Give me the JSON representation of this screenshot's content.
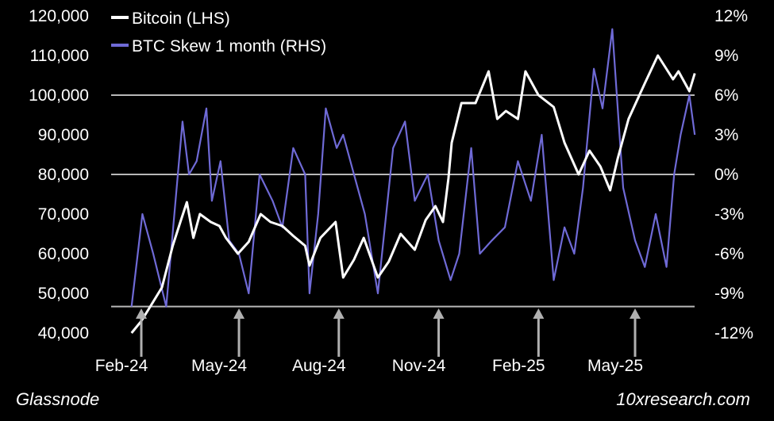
{
  "chart_data": {
    "type": "line",
    "x_tick_labels": [
      "Feb-24",
      "May-24",
      "Aug-24",
      "Nov-24",
      "Feb-25",
      "May-25"
    ],
    "left_axis": {
      "ticks": [
        40000,
        50000,
        60000,
        70000,
        80000,
        90000,
        100000,
        110000,
        120000
      ],
      "tick_labels": [
        "40,000",
        "50,000",
        "60,000",
        "70,000",
        "80,000",
        "90,000",
        "100,000",
        "110,000",
        "120,000"
      ],
      "ylim": [
        40000,
        120000
      ]
    },
    "right_axis": {
      "ticks": [
        -12,
        -9,
        -6,
        -3,
        0,
        3,
        6,
        9,
        12
      ],
      "tick_labels": [
        "-12%",
        "-9%",
        "-6%",
        "-3%",
        "0%",
        "3%",
        "6%",
        "9%",
        "12%"
      ],
      "ylim": [
        -12,
        12
      ]
    },
    "reference_lines": {
      "left_axis_values": [
        100000,
        80000
      ],
      "right_axis_values": [
        -10
      ]
    },
    "arrows": [
      "Feb-24",
      "May-24",
      "Aug-24",
      "Nov-24",
      "Feb-25",
      "May-25"
    ],
    "series": [
      {
        "name": "Bitcoin (LHS)",
        "axis": "left",
        "color": "#ffffff",
        "x": [
          "2024-01-23",
          "2024-02-01",
          "2024-02-10",
          "2024-02-20",
          "2024-03-01",
          "2024-03-08",
          "2024-03-14",
          "2024-03-20",
          "2024-03-26",
          "2024-04-05",
          "2024-04-13",
          "2024-04-19",
          "2024-04-30",
          "2024-05-10",
          "2024-05-21",
          "2024-05-30",
          "2024-06-10",
          "2024-06-20",
          "2024-07-01",
          "2024-07-05",
          "2024-07-15",
          "2024-07-29",
          "2024-08-05",
          "2024-08-15",
          "2024-08-24",
          "2024-09-06",
          "2024-09-16",
          "2024-09-27",
          "2024-10-10",
          "2024-10-20",
          "2024-10-29",
          "2024-11-05",
          "2024-11-10",
          "2024-11-13",
          "2024-11-22",
          "2024-12-05",
          "2024-12-17",
          "2024-12-25",
          "2025-01-02",
          "2025-01-13",
          "2025-01-20",
          "2025-02-01",
          "2025-02-15",
          "2025-02-25",
          "2025-03-10",
          "2025-03-20",
          "2025-03-30",
          "2025-04-08",
          "2025-04-15",
          "2025-04-25",
          "2025-05-10",
          "2025-05-22",
          "2025-06-05",
          "2025-06-10",
          "2025-06-20",
          "2025-06-25"
        ],
        "values": [
          40000,
          43000,
          47000,
          51500,
          62000,
          68000,
          73000,
          64000,
          70000,
          68000,
          67000,
          64000,
          60000,
          63000,
          70000,
          68000,
          67000,
          64500,
          62000,
          57000,
          64000,
          68000,
          54000,
          58500,
          64000,
          54000,
          58000,
          65000,
          61000,
          68500,
          72000,
          68000,
          79000,
          88000,
          98000,
          98000,
          106000,
          94000,
          96000,
          94000,
          106000,
          100000,
          97000,
          88000,
          80000,
          86000,
          82000,
          76000,
          84000,
          94000,
          103000,
          110000,
          104000,
          106000,
          101000,
          105500
        ]
      },
      {
        "name": "BTC Skew 1 month (RHS)",
        "axis": "right",
        "color": "#6f6ad6",
        "x": [
          "2024-01-23",
          "2024-02-02",
          "2024-02-12",
          "2024-02-24",
          "2024-03-10",
          "2024-03-16",
          "2024-03-23",
          "2024-04-01",
          "2024-04-06",
          "2024-04-14",
          "2024-04-22",
          "2024-05-01",
          "2024-05-10",
          "2024-05-20",
          "2024-06-01",
          "2024-06-10",
          "2024-06-20",
          "2024-07-01",
          "2024-07-05",
          "2024-07-13",
          "2024-07-20",
          "2024-07-30",
          "2024-08-05",
          "2024-08-15",
          "2024-08-25",
          "2024-09-06",
          "2024-09-20",
          "2024-10-01",
          "2024-10-10",
          "2024-10-22",
          "2024-11-01",
          "2024-11-12",
          "2024-11-20",
          "2024-12-01",
          "2024-12-09",
          "2024-12-20",
          "2025-01-01",
          "2025-01-13",
          "2025-01-25",
          "2025-02-04",
          "2025-02-15",
          "2025-02-25",
          "2025-03-06",
          "2025-03-14",
          "2025-03-24",
          "2025-04-01",
          "2025-04-10",
          "2025-04-20",
          "2025-05-01",
          "2025-05-10",
          "2025-05-20",
          "2025-05-30",
          "2025-06-06",
          "2025-06-12",
          "2025-06-20",
          "2025-06-25"
        ],
        "values": [
          -10,
          -3,
          -6,
          -10,
          4,
          0,
          1,
          5,
          -2,
          1,
          -5,
          -6,
          -9,
          0,
          -2,
          -4,
          2,
          0,
          -9,
          -3,
          5,
          2,
          3,
          0,
          -3,
          -9,
          2,
          4,
          -2,
          0,
          -5,
          -8,
          -6,
          2,
          -6,
          -5,
          -4,
          1,
          -2,
          3,
          -8,
          -4,
          -6,
          -1,
          8,
          5,
          11,
          -1,
          -5,
          -7,
          -3,
          -7,
          0,
          3,
          6,
          3
        ]
      }
    ]
  },
  "footer": {
    "source": "Glassnode",
    "credit": "10xresearch.com"
  }
}
